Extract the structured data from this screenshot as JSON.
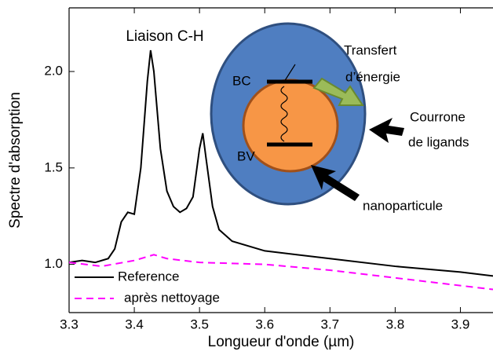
{
  "chart_data": {
    "type": "line",
    "x_label": "Longueur d'onde (µm)",
    "y_label": "Spectre d'absorption",
    "xlim": [
      3.3,
      3.95
    ],
    "ylim": [
      0.75,
      2.33
    ],
    "xticks": [
      3.3,
      3.4,
      3.5,
      3.6,
      3.7,
      3.8,
      3.9
    ],
    "yticks": [
      {
        "value": 1,
        "label": "1.0"
      },
      1.5,
      {
        "value": 2,
        "label": "2.0"
      }
    ],
    "series": [
      {
        "name": "Reference",
        "color": "#000000",
        "dash": false,
        "x": [
          3.3,
          3.32,
          3.34,
          3.36,
          3.37,
          3.38,
          3.39,
          3.4,
          3.41,
          3.42,
          3.425,
          3.43,
          3.44,
          3.45,
          3.46,
          3.47,
          3.48,
          3.49,
          3.5,
          3.505,
          3.51,
          3.52,
          3.53,
          3.55,
          3.6,
          3.7,
          3.8,
          3.9,
          3.95
        ],
        "values": [
          1.01,
          1.02,
          1.01,
          1.03,
          1.08,
          1.22,
          1.27,
          1.26,
          1.5,
          1.95,
          2.11,
          2.0,
          1.6,
          1.38,
          1.3,
          1.27,
          1.29,
          1.35,
          1.6,
          1.68,
          1.55,
          1.3,
          1.18,
          1.12,
          1.07,
          1.03,
          0.99,
          0.96,
          0.94
        ]
      },
      {
        "name": "après nettoyage",
        "color": "#ff00ff",
        "dash": true,
        "x": [
          3.3,
          3.35,
          3.4,
          3.43,
          3.45,
          3.5,
          3.6,
          3.7,
          3.8,
          3.9,
          3.95
        ],
        "values": [
          1.01,
          0.99,
          1.02,
          1.05,
          1.03,
          1.01,
          1.0,
          0.97,
          0.93,
          0.89,
          0.87
        ]
      }
    ],
    "annotations": [
      "Liaison C-H",
      "Transfert",
      "d’énergie",
      "Courrone",
      "de ligands",
      "nanoparticule",
      "BC",
      "BV"
    ]
  }
}
